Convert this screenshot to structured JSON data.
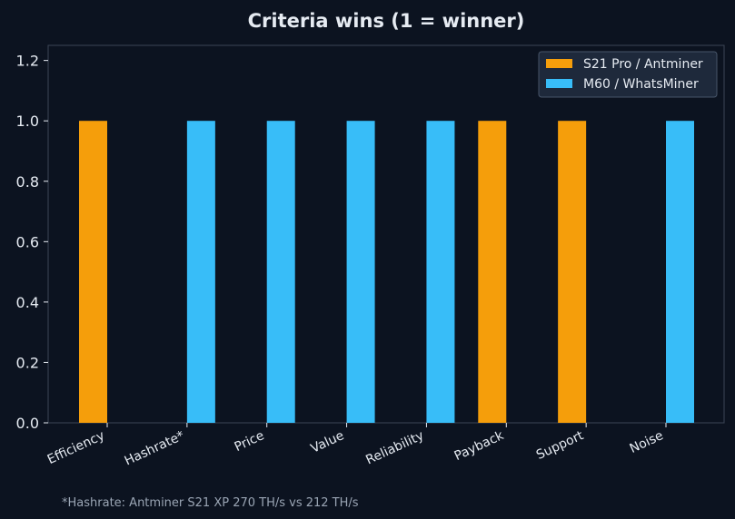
{
  "chart_data": {
    "type": "bar",
    "title": "Criteria wins (1 = winner)",
    "xlabel": "",
    "ylabel": "",
    "categories": [
      "Efficiency",
      "Hashrate*",
      "Price",
      "Value",
      "Reliability",
      "Payback",
      "Support",
      "Noise"
    ],
    "series": [
      {
        "name": "S21 Pro / Antminer",
        "color": "#f59e0b",
        "values": [
          1,
          0,
          0,
          0,
          0,
          1,
          1,
          0
        ]
      },
      {
        "name": "M60 / WhatsMiner",
        "color": "#38bdf8",
        "values": [
          0,
          1,
          1,
          1,
          1,
          0,
          0,
          1
        ]
      }
    ],
    "ylim": [
      0,
      1.25
    ],
    "yticks": [
      "0.0",
      "0.2",
      "0.4",
      "0.6",
      "0.8",
      "1.0",
      "1.2"
    ],
    "legend_position": "top-right",
    "grid": false,
    "footnote": "*Hashrate: Antminer S21 XP 270 TH/s vs 212 TH/s"
  },
  "colors": {
    "background": "#0c1320",
    "axes_edge": "#3b4656",
    "text": "#e6ebf2",
    "legend_bg": "#1e293b",
    "legend_edge": "#475569"
  }
}
